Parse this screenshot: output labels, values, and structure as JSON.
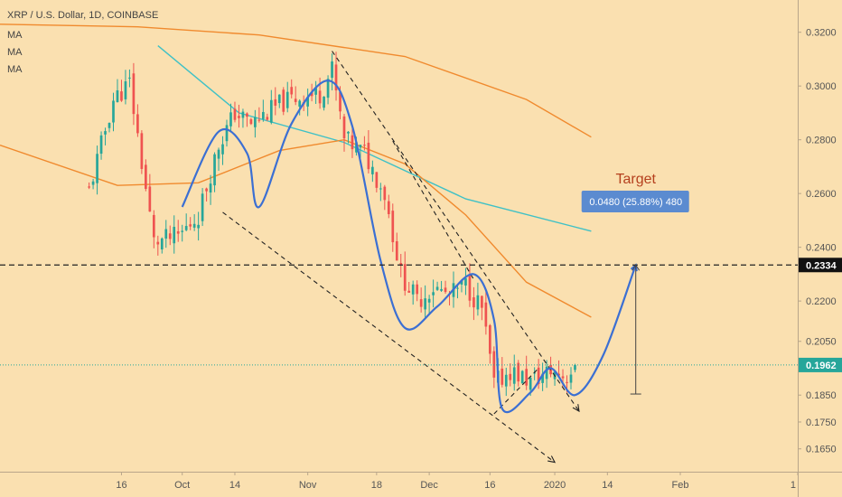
{
  "chart_data": {
    "type": "candlestick",
    "title": "XRP / U.S. Dollar, 1D, COINBASE",
    "indicators": [
      "MA",
      "MA",
      "MA"
    ],
    "ylim": [
      0.1565,
      0.332
    ],
    "xlim": [
      "2019-08-17",
      "2020-03-01"
    ],
    "y_ticks": [
      "0.3200",
      "0.3000",
      "0.2800",
      "0.2600",
      "0.2400",
      "0.2200",
      "0.2050",
      "0.1850",
      "0.1750",
      "0.1650"
    ],
    "x_ticks": [
      {
        "label": "16",
        "date": "2019-09-16"
      },
      {
        "label": "Oct",
        "date": "2019-10-01"
      },
      {
        "label": "14",
        "date": "2019-10-14"
      },
      {
        "label": "Nov",
        "date": "2019-11-01"
      },
      {
        "label": "18",
        "date": "2019-11-18"
      },
      {
        "label": "Dec",
        "date": "2019-12-01"
      },
      {
        "label": "16",
        "date": "2019-12-16"
      },
      {
        "label": "2020",
        "date": "2020-01-01"
      },
      {
        "label": "14",
        "date": "2020-01-14"
      },
      {
        "label": "Feb",
        "date": "2020-02-01"
      },
      {
        "label": "1",
        "date": "2020-03-01"
      }
    ],
    "horizontal_level": {
      "value": 0.2334,
      "label": "0.2334"
    },
    "last_price": {
      "value": 0.1962,
      "label": "0.1962"
    },
    "target": {
      "title": "Target",
      "label": "0.0480 (25.88%) 480",
      "from": 0.1854,
      "to": 0.2334,
      "date": "2020-01-21"
    },
    "candle_anchors": [
      {
        "date": "2019-09-08",
        "close": 0.261
      },
      {
        "date": "2019-09-14",
        "close": 0.295
      },
      {
        "date": "2019-09-18",
        "close": 0.301
      },
      {
        "date": "2019-09-24",
        "close": 0.242
      },
      {
        "date": "2019-09-30",
        "close": 0.244
      },
      {
        "date": "2019-10-05",
        "close": 0.252
      },
      {
        "date": "2019-10-10",
        "close": 0.278
      },
      {
        "date": "2019-10-14",
        "close": 0.29
      },
      {
        "date": "2019-10-18",
        "close": 0.286
      },
      {
        "date": "2019-10-22",
        "close": 0.29
      },
      {
        "date": "2019-10-26",
        "close": 0.294
      },
      {
        "date": "2019-10-30",
        "close": 0.296
      },
      {
        "date": "2019-11-04",
        "close": 0.297
      },
      {
        "date": "2019-11-07",
        "close": 0.306
      },
      {
        "date": "2019-11-10",
        "close": 0.28
      },
      {
        "date": "2019-11-15",
        "close": 0.275
      },
      {
        "date": "2019-11-20",
        "close": 0.26
      },
      {
        "date": "2019-11-24",
        "close": 0.23
      },
      {
        "date": "2019-11-28",
        "close": 0.22
      },
      {
        "date": "2019-12-02",
        "close": 0.225
      },
      {
        "date": "2019-12-06",
        "close": 0.222
      },
      {
        "date": "2019-12-10",
        "close": 0.226
      },
      {
        "date": "2019-12-14",
        "close": 0.217
      },
      {
        "date": "2019-12-17",
        "close": 0.189
      },
      {
        "date": "2019-12-21",
        "close": 0.194
      },
      {
        "date": "2019-12-26",
        "close": 0.19
      },
      {
        "date": "2019-12-31",
        "close": 0.194
      },
      {
        "date": "2020-01-04",
        "close": 0.192
      },
      {
        "date": "2020-01-06",
        "close": 0.1962
      }
    ],
    "moving_averages": [
      {
        "color": "#3fc1c6",
        "points": [
          [
            "2019-09-25",
            0.315
          ],
          [
            "2019-10-15",
            0.29
          ],
          [
            "2019-11-10",
            0.279
          ],
          [
            "2019-12-10",
            0.258
          ],
          [
            "2020-01-10",
            0.246
          ]
        ]
      },
      {
        "color": "#f08a2e",
        "points": [
          [
            "2019-08-17",
            0.323
          ],
          [
            "2019-09-20",
            0.322
          ],
          [
            "2019-10-20",
            0.319
          ],
          [
            "2019-11-25",
            0.311
          ],
          [
            "2019-12-25",
            0.295
          ],
          [
            "2020-01-10",
            0.281
          ]
        ]
      },
      {
        "color": "#f08a2e",
        "points": [
          [
            "2019-08-17",
            0.278
          ],
          [
            "2019-09-15",
            0.263
          ],
          [
            "2019-10-05",
            0.264
          ],
          [
            "2019-10-25",
            0.276
          ],
          [
            "2019-11-10",
            0.28
          ],
          [
            "2019-11-25",
            0.271
          ],
          [
            "2019-12-10",
            0.252
          ],
          [
            "2019-12-25",
            0.227
          ],
          [
            "2020-01-10",
            0.214
          ]
        ]
      }
    ],
    "channel_lines": [
      {
        "from": [
          "2019-10-11",
          0.253
        ],
        "to": [
          "2020-01-01",
          0.16
        ]
      },
      {
        "from": [
          "2019-11-07",
          0.313
        ],
        "to": [
          "2020-01-07",
          0.179
        ]
      },
      {
        "from": [
          "2019-11-22",
          0.2795
        ],
        "to": [
          "2019-12-12",
          0.228
        ]
      },
      {
        "from": [
          "2019-12-17",
          0.178
        ],
        "to": [
          "2019-12-28",
          0.195
        ]
      }
    ],
    "path_curve": [
      [
        "2019-10-01",
        0.255
      ],
      [
        "2019-10-10",
        0.283
      ],
      [
        "2019-10-17",
        0.275
      ],
      [
        "2019-10-20",
        0.255
      ],
      [
        "2019-10-28",
        0.286
      ],
      [
        "2019-11-06",
        0.302
      ],
      [
        "2019-11-12",
        0.285
      ],
      [
        "2019-11-19",
        0.235
      ],
      [
        "2019-11-25",
        0.21
      ],
      [
        "2019-12-03",
        0.218
      ],
      [
        "2019-12-12",
        0.23
      ],
      [
        "2019-12-17",
        0.213
      ],
      [
        "2019-12-19",
        0.18
      ],
      [
        "2019-12-26",
        0.186
      ],
      [
        "2019-12-31",
        0.195
      ],
      [
        "2020-01-06",
        0.185
      ],
      [
        "2020-01-13",
        0.2
      ],
      [
        "2020-01-21",
        0.2334
      ]
    ]
  }
}
